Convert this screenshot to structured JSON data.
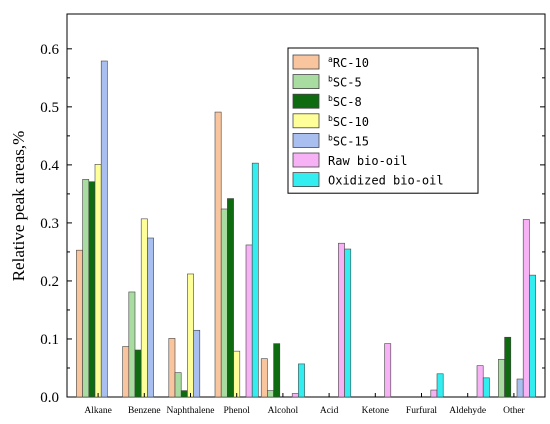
{
  "chart_data": {
    "type": "bar",
    "ylabel": "Relative peak areas,%",
    "xlabel": "",
    "ylim": [
      0,
      0.66
    ],
    "yticks": [
      "0.0",
      "0.1",
      "0.2",
      "0.3",
      "0.4",
      "0.5",
      "0.6"
    ],
    "grid": false,
    "legend_position": "top-right",
    "categories": [
      "Alkane",
      "Benzene",
      "Naphthalene",
      "Phenol",
      "Alcohol",
      "Acid",
      "Ketone",
      "Furfural",
      "Aldehyde",
      "Other"
    ],
    "series": [
      {
        "name": "RC-10",
        "sup": "a",
        "color": "#f9c59e",
        "values": [
          0.253,
          0.087,
          0.101,
          0.491,
          0.066,
          0,
          0,
          0,
          0,
          0
        ]
      },
      {
        "name": "SC-5",
        "sup": "b",
        "color": "#a8dca0",
        "values": [
          0.375,
          0.181,
          0.042,
          0.324,
          0.011,
          0,
          0,
          0,
          0,
          0.065
        ]
      },
      {
        "name": "SC-8",
        "sup": "b",
        "color": "#0e6b10",
        "values": [
          0.371,
          0.081,
          0.011,
          0.342,
          0.092,
          0,
          0,
          0,
          0,
          0.103
        ]
      },
      {
        "name": "SC-10",
        "sup": "b",
        "color": "#ffff99",
        "values": [
          0.401,
          0.307,
          0.212,
          0.079,
          0,
          0,
          0,
          0,
          0,
          0
        ]
      },
      {
        "name": "SC-15",
        "sup": "b",
        "color": "#a9bff0",
        "values": [
          0.579,
          0.274,
          0.115,
          0,
          0,
          0,
          0,
          0,
          0,
          0.031
        ]
      },
      {
        "name": "Raw bio-oil",
        "sup": "",
        "color": "#f7b1f5",
        "values": [
          0,
          0,
          0,
          0.262,
          0.006,
          0.265,
          0.092,
          0.012,
          0.054,
          0.306
        ]
      },
      {
        "name": "Oxidized bio-oil",
        "sup": "",
        "color": "#33eef0",
        "values": [
          0,
          0,
          0,
          0.403,
          0.057,
          0.255,
          0,
          0.04,
          0.033,
          0.21
        ]
      }
    ]
  }
}
